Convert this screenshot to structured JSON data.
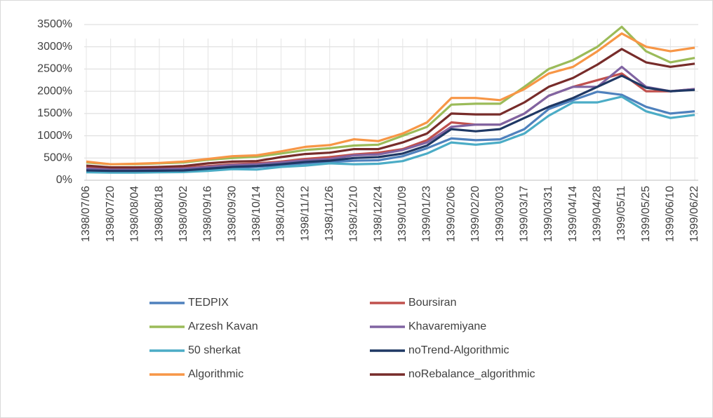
{
  "chart_data": {
    "type": "line",
    "categories": [
      "1398/07/06",
      "1398/07/20",
      "1398/08/04",
      "1398/08/18",
      "1398/09/02",
      "1398/09/16",
      "1398/09/30",
      "1398/10/14",
      "1398/10/28",
      "1398/11/12",
      "1398/11/26",
      "1398/12/10",
      "1398/12/24",
      "1399/01/09",
      "1399/01/23",
      "1399/02/06",
      "1399/02/20",
      "1399/03/03",
      "1399/03/17",
      "1399/03/31",
      "1399/04/14",
      "1399/04/28",
      "1399/05/11",
      "1399/05/25",
      "1399/06/10",
      "1399/06/22"
    ],
    "series": [
      {
        "name": "TEDPIX",
        "color": "#4f81bd",
        "values": [
          210,
          200,
          200,
          205,
          215,
          240,
          280,
          300,
          340,
          380,
          410,
          440,
          450,
          540,
          720,
          940,
          900,
          920,
          1150,
          1600,
          1800,
          1990,
          1920,
          1650,
          1500,
          1550
        ]
      },
      {
        "name": "Boursiran",
        "color": "#c0504d",
        "values": [
          300,
          260,
          260,
          270,
          280,
          320,
          360,
          380,
          420,
          480,
          520,
          580,
          620,
          700,
          900,
          1300,
          1250,
          1250,
          1500,
          1900,
          2100,
          2250,
          2400,
          2000,
          2000,
          2050
        ]
      },
      {
        "name": "Arzesh Kavan",
        "color": "#9bbb59",
        "values": [
          400,
          360,
          360,
          380,
          400,
          460,
          500,
          530,
          600,
          680,
          720,
          780,
          800,
          1000,
          1200,
          1700,
          1720,
          1720,
          2100,
          2500,
          2700,
          3000,
          3450,
          2900,
          2650,
          2750
        ]
      },
      {
        "name": "Khavaremiyane",
        "color": "#8064a2",
        "values": [
          260,
          240,
          240,
          250,
          260,
          300,
          340,
          360,
          400,
          450,
          480,
          560,
          580,
          680,
          850,
          1200,
          1250,
          1250,
          1500,
          1900,
          2100,
          2100,
          2550,
          2100,
          2000,
          2050
        ]
      },
      {
        "name": "50 sherkat",
        "color": "#4bacc6",
        "values": [
          180,
          170,
          170,
          180,
          185,
          210,
          250,
          240,
          300,
          330,
          380,
          360,
          370,
          430,
          600,
          850,
          800,
          850,
          1050,
          1450,
          1750,
          1750,
          1880,
          1550,
          1400,
          1470
        ]
      },
      {
        "name": "noTrend-Algorithmic",
        "color": "#1f3864",
        "values": [
          220,
          210,
          210,
          215,
          220,
          260,
          300,
          320,
          360,
          410,
          440,
          500,
          520,
          600,
          780,
          1150,
          1100,
          1150,
          1400,
          1650,
          1850,
          2100,
          2350,
          2080,
          2000,
          2030
        ]
      },
      {
        "name": "Algorithmic",
        "color": "#f79646",
        "values": [
          420,
          360,
          370,
          390,
          420,
          480,
          540,
          560,
          650,
          750,
          790,
          920,
          880,
          1050,
          1300,
          1850,
          1850,
          1800,
          2050,
          2400,
          2550,
          2900,
          3300,
          3000,
          2900,
          2980
        ]
      },
      {
        "name": "noRebalance_algorithmic",
        "color": "#772c2a",
        "values": [
          330,
          290,
          290,
          300,
          320,
          380,
          420,
          430,
          520,
          590,
          620,
          700,
          700,
          850,
          1050,
          1500,
          1480,
          1480,
          1750,
          2100,
          2300,
          2600,
          2950,
          2650,
          2550,
          2620
        ]
      }
    ],
    "ylim": [
      0,
      3500
    ],
    "yticks": [
      {
        "value": 0,
        "label": "0%"
      },
      {
        "value": 500,
        "label": "500%"
      },
      {
        "value": 1000,
        "label": "1000%"
      },
      {
        "value": 1500,
        "label": "1500%"
      },
      {
        "value": 2000,
        "label": "2000%"
      },
      {
        "value": 2500,
        "label": "2500%"
      },
      {
        "value": 3000,
        "label": "3000%"
      },
      {
        "value": 3500,
        "label": "3500%"
      }
    ],
    "grid": true,
    "legend": "bottom"
  }
}
